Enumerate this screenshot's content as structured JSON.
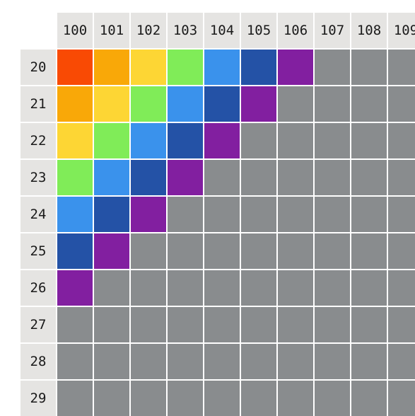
{
  "column_headers": [
    "100",
    "101",
    "102",
    "103",
    "104",
    "105",
    "106",
    "107",
    "108",
    "109"
  ],
  "row_headers": [
    "20",
    "21",
    "22",
    "23",
    "24",
    "25",
    "26",
    "27",
    "28",
    "29"
  ],
  "palette": [
    "#f94a04",
    "#f9a808",
    "#fdd634",
    "#80ec58",
    "#3a92ec",
    "#2452a6",
    "#821fa0"
  ],
  "empty_color": "#898c8e",
  "header_background": "#e5e4e2",
  "cells": [
    [
      0,
      1,
      2,
      3,
      4,
      5,
      6,
      null,
      null,
      null
    ],
    [
      1,
      2,
      3,
      4,
      5,
      6,
      null,
      null,
      null,
      null
    ],
    [
      2,
      3,
      4,
      5,
      6,
      null,
      null,
      null,
      null,
      null
    ],
    [
      3,
      4,
      5,
      6,
      null,
      null,
      null,
      null,
      null,
      null
    ],
    [
      4,
      5,
      6,
      null,
      null,
      null,
      null,
      null,
      null,
      null
    ],
    [
      5,
      6,
      null,
      null,
      null,
      null,
      null,
      null,
      null,
      null
    ],
    [
      6,
      null,
      null,
      null,
      null,
      null,
      null,
      null,
      null,
      null
    ],
    [
      null,
      null,
      null,
      null,
      null,
      null,
      null,
      null,
      null,
      null
    ],
    [
      null,
      null,
      null,
      null,
      null,
      null,
      null,
      null,
      null,
      null
    ],
    [
      null,
      null,
      null,
      null,
      null,
      null,
      null,
      null,
      null,
      null
    ]
  ]
}
